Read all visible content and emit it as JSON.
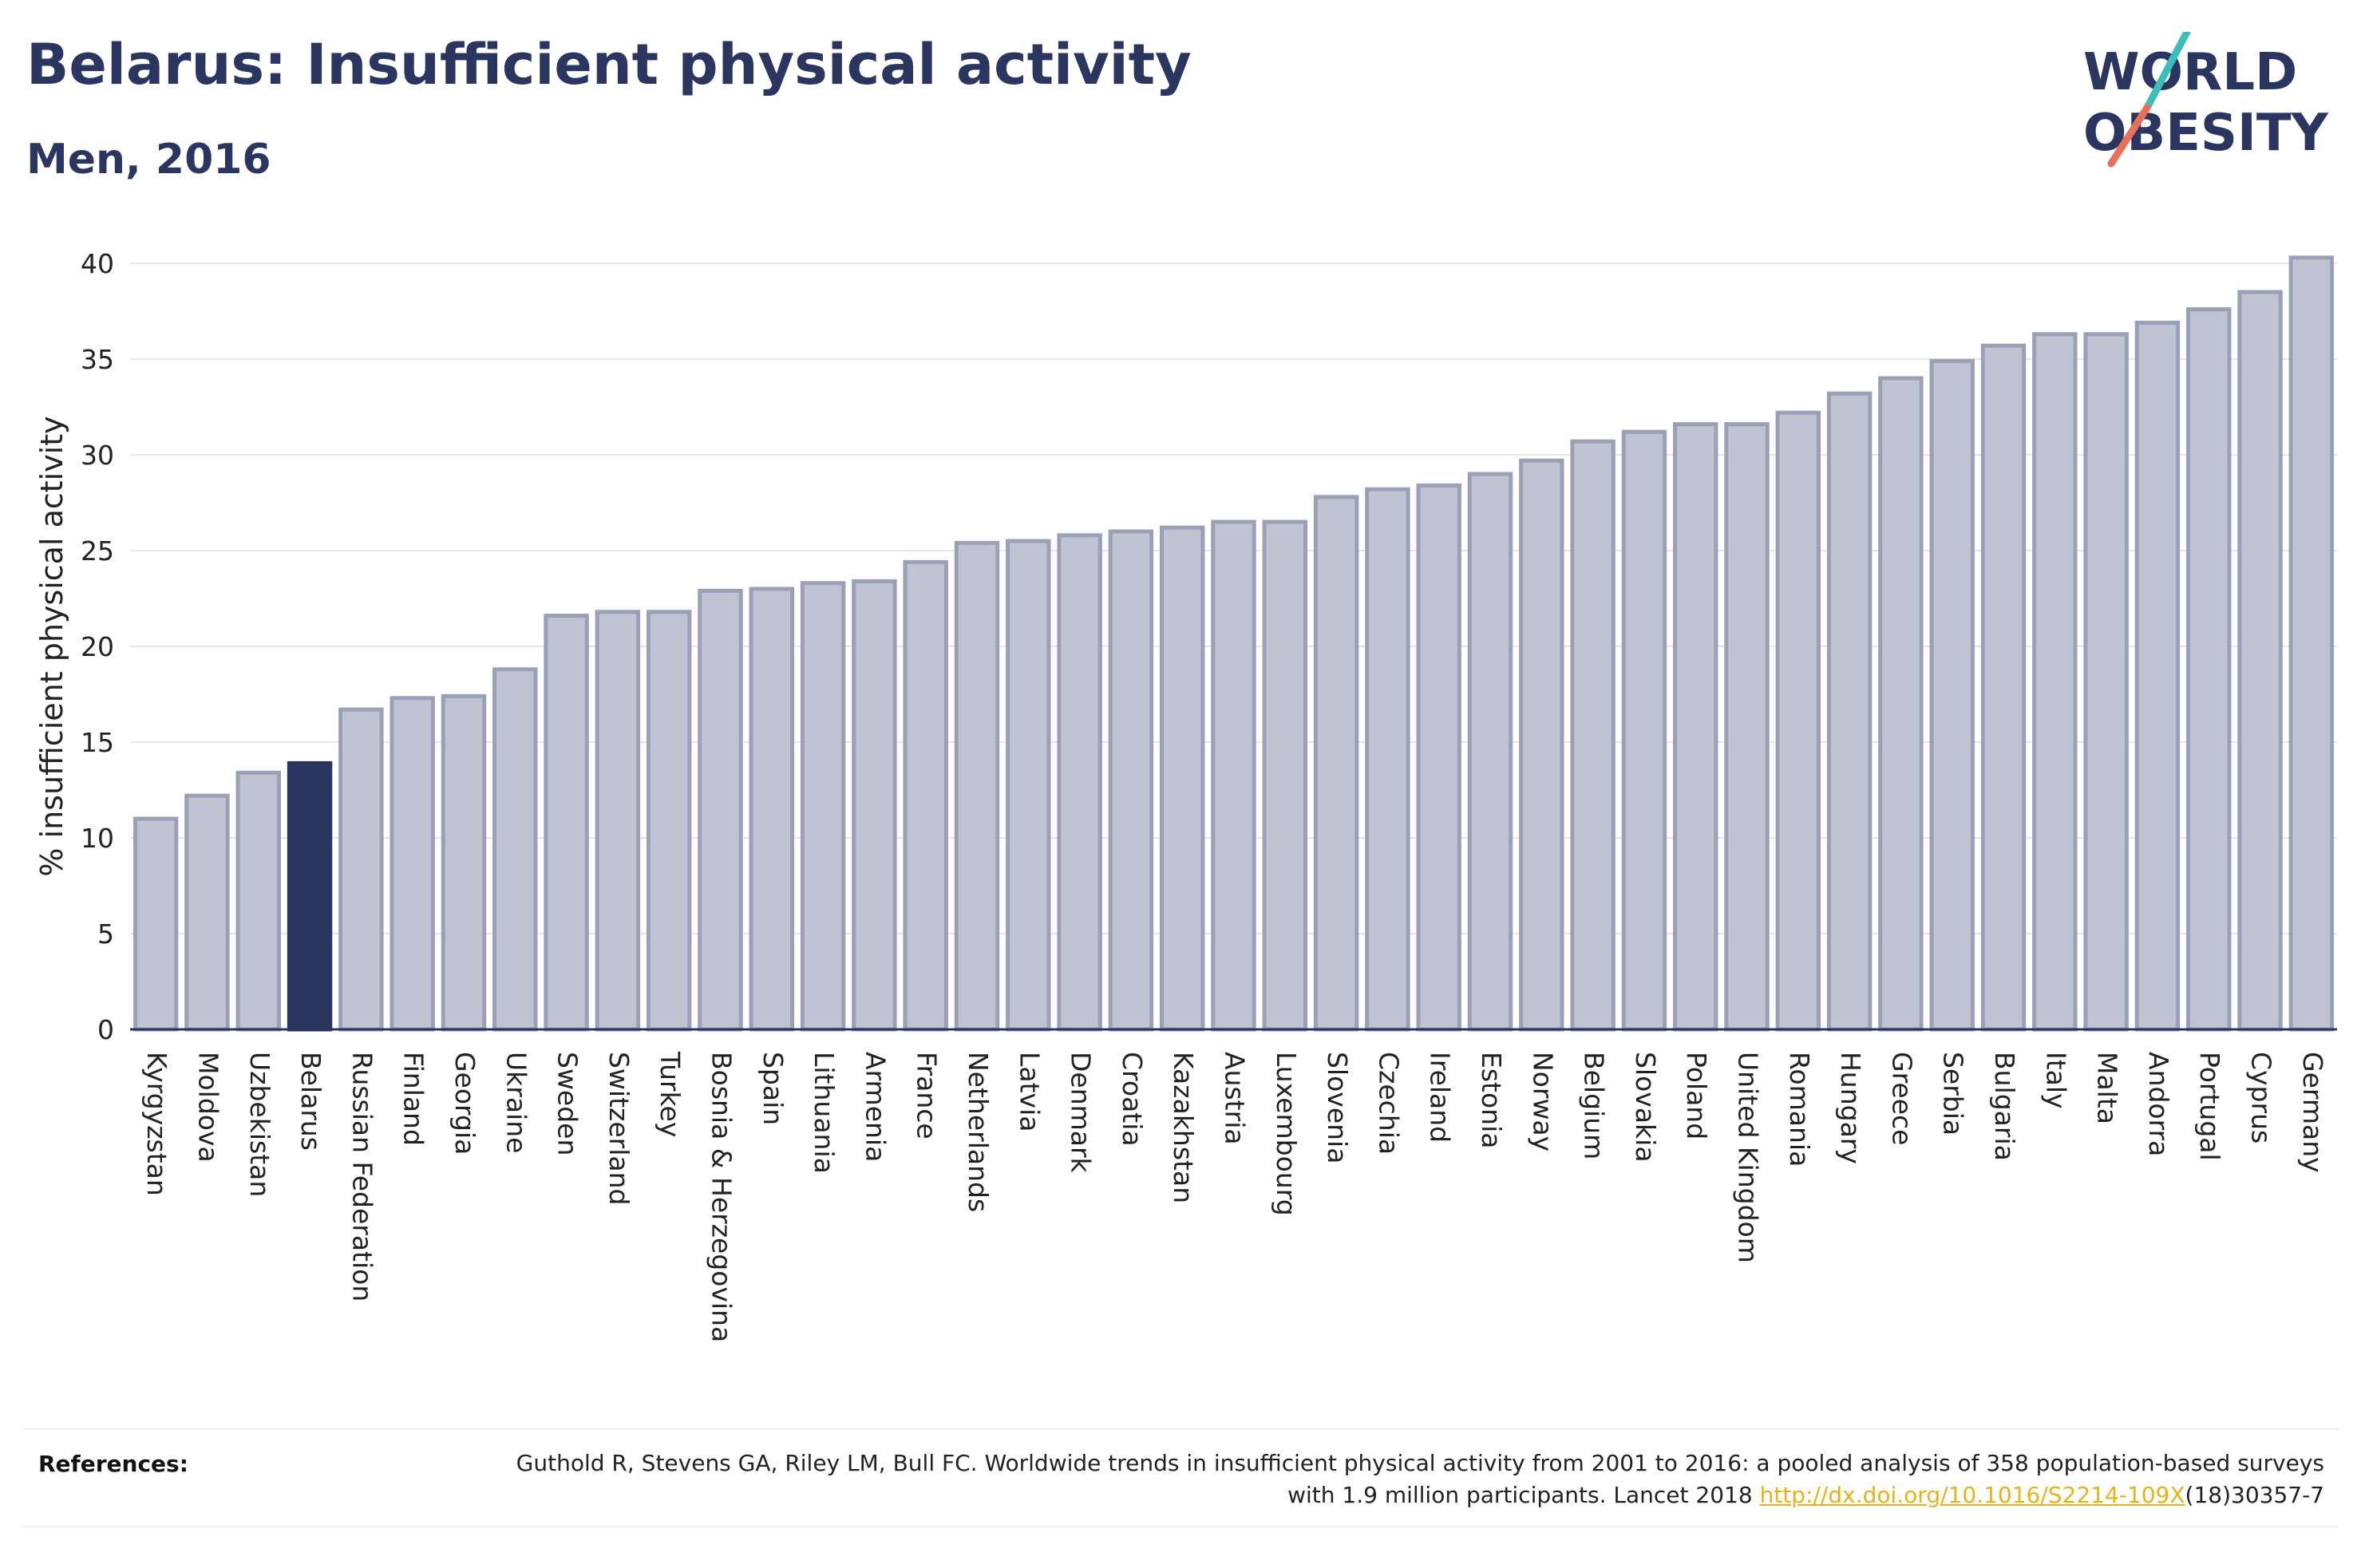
{
  "header": {
    "title": "Belarus: Insufficient physical activity",
    "subtitle": "Men, 2016"
  },
  "logo": {
    "line1": "WORLD",
    "line2": "OBESITY",
    "colors": {
      "text": "#2a3560",
      "slash_teal": "#3bbfb8",
      "slash_coral": "#e8705a"
    }
  },
  "colors": {
    "highlight": "#2a3560",
    "bar_fill": "#c0c3d1",
    "bar_stroke": "#9aa0b8",
    "grid": "#e6e6e6"
  },
  "chart_data": {
    "type": "bar",
    "ylabel": "% insufficient physical activity",
    "xlabel": "",
    "ylim": [
      0,
      40
    ],
    "yticks": [
      0,
      5,
      10,
      15,
      20,
      25,
      30,
      35,
      40
    ],
    "grid": true,
    "highlight": "Belarus",
    "categories": [
      "Kyrgyzstan",
      "Moldova",
      "Uzbekistan",
      "Belarus",
      "Russian Federation",
      "Finland",
      "Georgia",
      "Ukraine",
      "Sweden",
      "Switzerland",
      "Turkey",
      "Bosnia & Herzegovina",
      "Spain",
      "Lithuania",
      "Armenia",
      "France",
      "Netherlands",
      "Latvia",
      "Denmark",
      "Croatia",
      "Kazakhstan",
      "Austria",
      "Luxembourg",
      "Slovenia",
      "Czechia",
      "Ireland",
      "Estonia",
      "Norway",
      "Belgium",
      "Slovakia",
      "Poland",
      "United Kingdom",
      "Romania",
      "Hungary",
      "Greece",
      "Serbia",
      "Bulgaria",
      "Italy",
      "Malta",
      "Andorra",
      "Portugal",
      "Cyprus",
      "Germany"
    ],
    "values": [
      11.0,
      12.2,
      13.4,
      13.9,
      16.7,
      17.3,
      17.4,
      18.8,
      21.6,
      21.8,
      21.8,
      22.9,
      23.0,
      23.3,
      23.4,
      24.4,
      25.4,
      25.5,
      25.8,
      26.0,
      26.2,
      26.5,
      26.5,
      27.8,
      28.2,
      28.4,
      29.0,
      29.7,
      30.7,
      31.2,
      31.6,
      31.6,
      32.2,
      33.2,
      34.0,
      34.9,
      35.7,
      36.3,
      36.3,
      36.9,
      37.6,
      38.5,
      40.3
    ]
  },
  "references": {
    "label": "References:",
    "text_before": "Guthold R, Stevens GA, Riley LM, Bull FC. Worldwide trends in insufficient physical activity from 2001 to 2016: a pooled analysis of 358 population-based surveys with 1.9 million participants. Lancet 2018 ",
    "link_text": "http://dx.doi.org/10.1016/S2214-109X",
    "text_after": "(18)30357-7"
  }
}
